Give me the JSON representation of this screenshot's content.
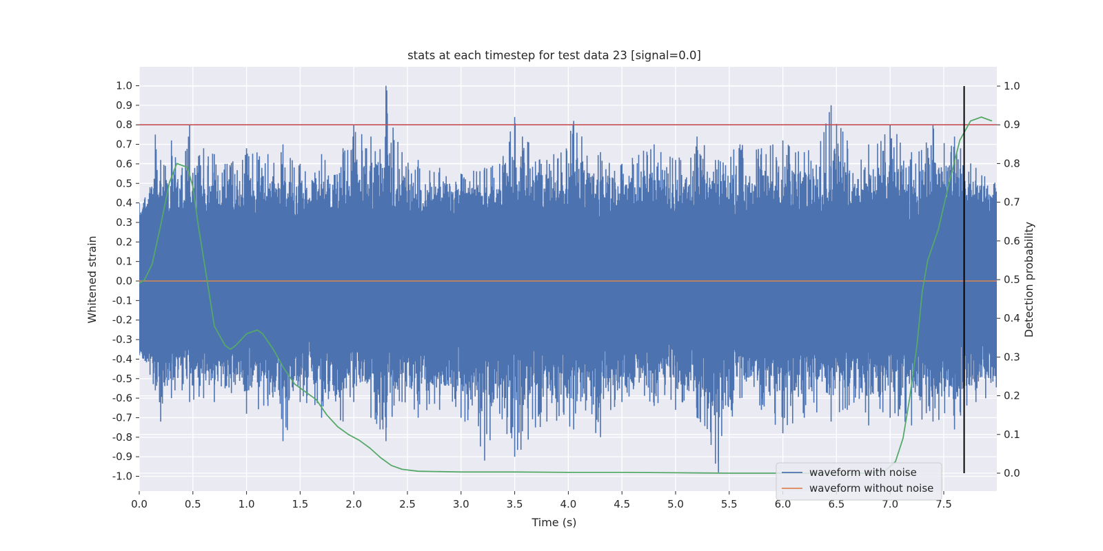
{
  "chart_data": {
    "type": "line",
    "title": "stats at each timestep for test data 23 [signal=0.0]",
    "xlabel": "Time (s)",
    "ylabel": "Whitened strain",
    "y2label": "Detection probability",
    "xlim": [
      0.0,
      8.0
    ],
    "ylim": [
      -1.1,
      1.1
    ],
    "y2lim": [
      -0.05,
      1.05
    ],
    "x_ticks": [
      "0.0",
      "0.5",
      "1.0",
      "1.5",
      "2.0",
      "2.5",
      "3.0",
      "3.5",
      "4.0",
      "4.5",
      "5.0",
      "5.5",
      "6.0",
      "6.5",
      "7.0",
      "7.5"
    ],
    "y_ticks": [
      "1.0",
      "0.9",
      "0.8",
      "0.7",
      "0.6",
      "0.5",
      "0.4",
      "0.3",
      "0.2",
      "0.1",
      "0.0",
      "-0.1",
      "-0.2",
      "-0.3",
      "-0.4",
      "-0.5",
      "-0.6",
      "-0.7",
      "-0.8",
      "-0.9",
      "-1.0"
    ],
    "y2_ticks": [
      "1.0",
      "0.9",
      "0.8",
      "0.7",
      "0.6",
      "0.5",
      "0.4",
      "0.3",
      "0.2",
      "0.1",
      "0.0"
    ],
    "grid": true,
    "legend_position": "bottom-right",
    "series": [
      {
        "name": "waveform with noise",
        "axis": "left",
        "color": "#4c72b0",
        "envelope_note": "dense noise trace; approximate peak envelope",
        "x": [
          0.0,
          0.1,
          0.15,
          0.2,
          0.3,
          0.4,
          0.47,
          0.6,
          0.7,
          0.8,
          1.0,
          1.2,
          1.34,
          1.5,
          1.7,
          1.9,
          2.0,
          2.16,
          2.3,
          2.45,
          2.6,
          2.8,
          3.0,
          3.22,
          3.36,
          3.5,
          3.8,
          4.05,
          4.3,
          4.5,
          4.8,
          5.0,
          5.2,
          5.4,
          5.6,
          5.8,
          6.0,
          6.2,
          6.45,
          6.6,
          6.8,
          7.0,
          7.2,
          7.4,
          7.6,
          7.8,
          8.0
        ],
        "upper": [
          0.4,
          0.48,
          0.75,
          0.62,
          0.72,
          0.58,
          0.8,
          0.68,
          0.65,
          0.6,
          0.68,
          0.65,
          0.7,
          0.6,
          0.65,
          0.68,
          0.8,
          0.74,
          1.0,
          0.66,
          0.62,
          0.58,
          0.55,
          0.58,
          0.6,
          0.84,
          0.62,
          0.82,
          0.66,
          0.6,
          0.7,
          0.62,
          0.74,
          0.62,
          0.7,
          0.68,
          0.72,
          0.66,
          0.9,
          0.72,
          0.7,
          0.8,
          0.66,
          0.8,
          0.74,
          0.58,
          0.5
        ],
        "lower": [
          -0.38,
          -0.48,
          -0.56,
          -0.72,
          -0.6,
          -0.56,
          -0.62,
          -0.6,
          -0.62,
          -0.55,
          -0.68,
          -0.64,
          -0.82,
          -0.62,
          -0.7,
          -0.72,
          -0.62,
          -0.7,
          -0.82,
          -0.62,
          -0.7,
          -0.66,
          -0.7,
          -0.92,
          -0.68,
          -0.9,
          -0.72,
          -0.76,
          -0.8,
          -0.62,
          -0.64,
          -0.66,
          -0.7,
          -0.98,
          -0.6,
          -0.66,
          -0.78,
          -0.7,
          -0.72,
          -0.66,
          -0.74,
          -0.7,
          -0.74,
          -0.72,
          -0.76,
          -0.62,
          -0.6
        ]
      },
      {
        "name": "waveform without noise",
        "axis": "left",
        "color": "#dd8452",
        "x": [
          0.0,
          8.0
        ],
        "y": [
          0.0,
          0.0
        ]
      },
      {
        "name": "",
        "axis": "right",
        "color": "#55a868",
        "x": [
          0.0,
          0.05,
          0.12,
          0.2,
          0.28,
          0.35,
          0.45,
          0.5,
          0.55,
          0.62,
          0.7,
          0.8,
          0.85,
          0.9,
          1.0,
          1.1,
          1.15,
          1.25,
          1.35,
          1.45,
          1.55,
          1.65,
          1.75,
          1.85,
          1.95,
          2.05,
          2.15,
          2.25,
          2.35,
          2.45,
          2.6,
          3.0,
          3.5,
          4.0,
          4.5,
          5.0,
          5.5,
          6.0,
          6.5,
          6.8,
          6.95,
          7.05,
          7.12,
          7.18,
          7.25,
          7.3,
          7.35,
          7.45,
          7.55,
          7.65,
          7.75,
          7.85,
          7.95
        ],
        "y": [
          0.49,
          0.5,
          0.54,
          0.64,
          0.75,
          0.8,
          0.79,
          0.74,
          0.64,
          0.52,
          0.38,
          0.33,
          0.32,
          0.33,
          0.36,
          0.37,
          0.36,
          0.32,
          0.27,
          0.23,
          0.21,
          0.19,
          0.15,
          0.12,
          0.1,
          0.085,
          0.065,
          0.04,
          0.02,
          0.01,
          0.005,
          0.003,
          0.003,
          0.002,
          0.002,
          0.001,
          0.0,
          0.0,
          0.0,
          0.0,
          0.005,
          0.03,
          0.09,
          0.19,
          0.33,
          0.47,
          0.55,
          0.63,
          0.75,
          0.86,
          0.91,
          0.92,
          0.91
        ]
      }
    ],
    "hlines": [
      {
        "axis": "left",
        "y": 0.8,
        "color": "#c44e52"
      }
    ],
    "vlines": [
      {
        "x": 7.69,
        "ymin_right": 0.0,
        "ymax_right": 1.0,
        "color": "#000000"
      }
    ]
  }
}
